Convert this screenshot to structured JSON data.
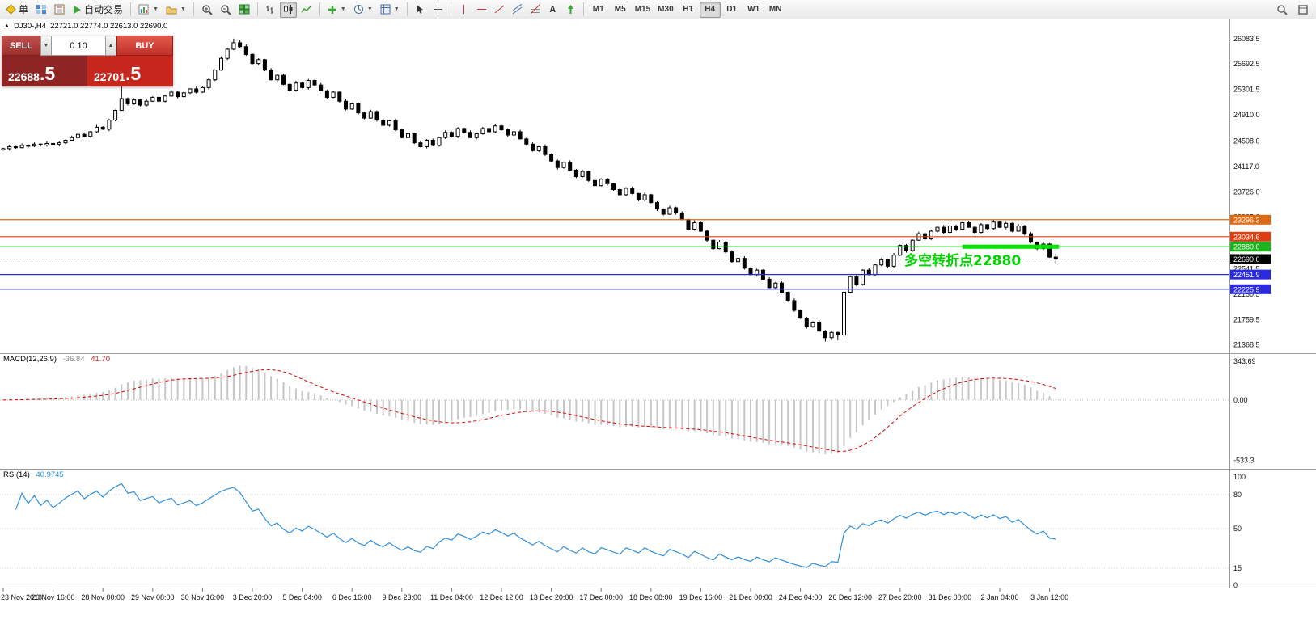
{
  "toolbar": {
    "new_order_label": "单",
    "autotrade_label": "自动交易",
    "icons": [
      "new-order",
      "market-watch",
      "data-window",
      "autotrading",
      "new-chart",
      "profiles",
      "zoom-in",
      "zoom-out",
      "tile-windows",
      "bar-chart",
      "candlestick-chart",
      "line-chart",
      "indicators",
      "periods",
      "templates",
      "cursor",
      "crosshair",
      "horizontal-line-tool",
      "trendline-tool",
      "channel-tool",
      "fibonacci-tool",
      "text-tool",
      "arrows-tool",
      "search",
      "fullscreen"
    ],
    "timeframes": [
      {
        "label": "M1",
        "active": false
      },
      {
        "label": "M5",
        "active": false
      },
      {
        "label": "M15",
        "active": false
      },
      {
        "label": "M30",
        "active": false
      },
      {
        "label": "H1",
        "active": false
      },
      {
        "label": "H4",
        "active": true
      },
      {
        "label": "D1",
        "active": false
      },
      {
        "label": "W1",
        "active": false
      },
      {
        "label": "MN",
        "active": false
      }
    ]
  },
  "window": {
    "symbol_period": "DJ30-,H4",
    "ohlc_line": "22721.0 22774.0 22613.0 22690.0"
  },
  "trade_panel": {
    "sell_label": "SELL",
    "buy_label": "BUY",
    "volume": "0.10",
    "sell_price": "22688.5",
    "sell_price_main": "22688",
    "sell_price_frac": ".5",
    "buy_price": "22701.5",
    "buy_price_main": "22701",
    "buy_price_frac": ".5",
    "spin_down": "▼",
    "spin_up": "▲"
  },
  "chart_data": {
    "type": "candlestick",
    "title": "DJ30-,H4",
    "y_range": [
      21290,
      26330
    ],
    "y_ticks": [
      "26083.5",
      "25692.5",
      "25301.5",
      "24910.0",
      "24508.0",
      "24117.0",
      "23726.0",
      "23335.0",
      "22932.5",
      "22541.5",
      "22150.5",
      "21759.5",
      "21368.5"
    ],
    "x_tick_step": 8,
    "x_tick_labels": [
      "23 Nov 2018",
      "26 Nov 16:00",
      "28 Nov 00:00",
      "29 Nov 08:00",
      "30 Nov 16:00",
      "3 Dec 20:00",
      "5 Dec 04:00",
      "6 Dec 16:00",
      "9 Dec 23:00",
      "11 Dec 04:00",
      "12 Dec 12:00",
      "13 Dec 20:00",
      "17 Dec 00:00",
      "18 Dec 08:00",
      "19 Dec 16:00",
      "21 Dec 00:00",
      "24 Dec 04:00",
      "26 Dec 12:00",
      "27 Dec 20:00",
      "31 Dec 00:00",
      "2 Jan 04:00",
      "3 Jan 12:00"
    ],
    "ohlc": [
      [
        24370,
        24405,
        24358,
        24390
      ],
      [
        24390,
        24442,
        24360,
        24420
      ],
      [
        24420,
        24432,
        24387,
        24405
      ],
      [
        24405,
        24470,
        24395,
        24440
      ],
      [
        24440,
        24458,
        24405,
        24430
      ],
      [
        24430,
        24485,
        24415,
        24460
      ],
      [
        24460,
        24470,
        24425,
        24445
      ],
      [
        24445,
        24505,
        24423,
        24470
      ],
      [
        24470,
        24485,
        24443,
        24455
      ],
      [
        24455,
        24502,
        24425,
        24480
      ],
      [
        24480,
        24532,
        24462,
        24520
      ],
      [
        24520,
        24590,
        24510,
        24560
      ],
      [
        24560,
        24628,
        24535,
        24610
      ],
      [
        24610,
        24635,
        24565,
        24580
      ],
      [
        24580,
        24660,
        24560,
        24650
      ],
      [
        24650,
        24755,
        24628,
        24720
      ],
      [
        24720,
        24735,
        24678,
        24690
      ],
      [
        24690,
        24852,
        24660,
        24830
      ],
      [
        24830,
        24992,
        24812,
        24980
      ],
      [
        24980,
        25350,
        24970,
        25160
      ],
      [
        25160,
        25178,
        25055,
        25080
      ],
      [
        25080,
        25165,
        25065,
        25140
      ],
      [
        25140,
        25150,
        25040,
        25060
      ],
      [
        25060,
        25155,
        25038,
        25120
      ],
      [
        25120,
        25195,
        25108,
        25180
      ],
      [
        25180,
        25202,
        25090,
        25120
      ],
      [
        25120,
        25212,
        25102,
        25200
      ],
      [
        25200,
        25290,
        25190,
        25260
      ],
      [
        25260,
        25278,
        25165,
        25190
      ],
      [
        25190,
        25275,
        25175,
        25250
      ],
      [
        25250,
        25320,
        25230,
        25310
      ],
      [
        25310,
        25345,
        25238,
        25260
      ],
      [
        25260,
        25345,
        25248,
        25330
      ],
      [
        25330,
        25472,
        25300,
        25450
      ],
      [
        25450,
        25612,
        25432,
        25600
      ],
      [
        25600,
        25810,
        25590,
        25780
      ],
      [
        25780,
        25938,
        25755,
        25920
      ],
      [
        25920,
        26083,
        25905,
        26020
      ],
      [
        26020,
        26060,
        25940,
        25960
      ],
      [
        25960,
        25995,
        25818,
        25840
      ],
      [
        25840,
        25855,
        25688,
        25700
      ],
      [
        25700,
        25782,
        25670,
        25760
      ],
      [
        25760,
        25772,
        25582,
        25600
      ],
      [
        25600,
        25630,
        25440,
        25450
      ],
      [
        25450,
        25538,
        25425,
        25520
      ],
      [
        25520,
        25545,
        25365,
        25380
      ],
      [
        25380,
        25390,
        25270,
        25290
      ],
      [
        25290,
        25435,
        25268,
        25400
      ],
      [
        25400,
        25415,
        25318,
        25330
      ],
      [
        25330,
        25462,
        25300,
        25440
      ],
      [
        25440,
        25452,
        25352,
        25370
      ],
      [
        25370,
        25400,
        25270,
        25280
      ],
      [
        25280,
        25298,
        25155,
        25180
      ],
      [
        25180,
        25285,
        25165,
        25260
      ],
      [
        25260,
        25270,
        25100,
        25120
      ],
      [
        25120,
        25155,
        24978,
        25000
      ],
      [
        25000,
        25095,
        24988,
        25080
      ],
      [
        25080,
        25102,
        24910,
        24940
      ],
      [
        24940,
        24952,
        24842,
        24860
      ],
      [
        24860,
        24990,
        24850,
        24960
      ],
      [
        24960,
        24978,
        24805,
        24830
      ],
      [
        24830,
        24855,
        24735,
        24750
      ],
      [
        24750,
        24830,
        24730,
        24820
      ],
      [
        24820,
        24855,
        24658,
        24680
      ],
      [
        24680,
        24695,
        24548,
        24560
      ],
      [
        24560,
        24642,
        24530,
        24620
      ],
      [
        24620,
        24632,
        24462,
        24480
      ],
      [
        24480,
        24510,
        24410,
        24420
      ],
      [
        24420,
        24538,
        24395,
        24520
      ],
      [
        24520,
        24545,
        24425,
        24440
      ],
      [
        24440,
        24570,
        24420,
        24560
      ],
      [
        24560,
        24675,
        24538,
        24640
      ],
      [
        24640,
        24655,
        24568,
        24580
      ],
      [
        24580,
        24722,
        24550,
        24700
      ],
      [
        24700,
        24712,
        24622,
        24640
      ],
      [
        24640,
        24670,
        24550,
        24560
      ],
      [
        24560,
        24638,
        24535,
        24620
      ],
      [
        24620,
        24725,
        24605,
        24700
      ],
      [
        24700,
        24710,
        24630,
        24650
      ],
      [
        24650,
        24775,
        24628,
        24740
      ],
      [
        24740,
        24755,
        24668,
        24680
      ],
      [
        24680,
        24702,
        24570,
        24600
      ],
      [
        24600,
        24662,
        24582,
        24650
      ],
      [
        24650,
        24680,
        24530,
        24540
      ],
      [
        24540,
        24558,
        24435,
        24460
      ],
      [
        24460,
        24485,
        24345,
        24360
      ],
      [
        24360,
        24430,
        24340,
        24420
      ],
      [
        24420,
        24455,
        24278,
        24300
      ],
      [
        24300,
        24315,
        24188,
        24200
      ],
      [
        24200,
        24222,
        24070,
        24100
      ],
      [
        24100,
        24192,
        24082,
        24180
      ],
      [
        24180,
        24210,
        24050,
        24060
      ],
      [
        24060,
        24078,
        23935,
        23960
      ],
      [
        23960,
        24065,
        23945,
        24040
      ],
      [
        24040,
        24050,
        23880,
        23900
      ],
      [
        23900,
        23935,
        23798,
        23820
      ],
      [
        23820,
        23935,
        23808,
        23920
      ],
      [
        23920,
        23942,
        23820,
        23850
      ],
      [
        23850,
        23862,
        23742,
        23760
      ],
      [
        23760,
        23790,
        23670,
        23680
      ],
      [
        23680,
        23798,
        23655,
        23780
      ],
      [
        23780,
        23805,
        23685,
        23700
      ],
      [
        23700,
        23710,
        23580,
        23600
      ],
      [
        23600,
        23715,
        23578,
        23680
      ],
      [
        23680,
        23695,
        23548,
        23560
      ],
      [
        23560,
        23582,
        23430,
        23460
      ],
      [
        23460,
        23472,
        23362,
        23380
      ],
      [
        23380,
        23510,
        23370,
        23480
      ],
      [
        23480,
        23498,
        23375,
        23400
      ],
      [
        23400,
        23425,
        23285,
        23300
      ],
      [
        23300,
        23310,
        23130,
        23150
      ],
      [
        23150,
        23285,
        23128,
        23250
      ],
      [
        23250,
        23265,
        23108,
        23120
      ],
      [
        23120,
        23142,
        22950,
        22980
      ],
      [
        22980,
        22992,
        22832,
        22850
      ],
      [
        22850,
        22980,
        22840,
        22950
      ],
      [
        22950,
        22968,
        22775,
        22800
      ],
      [
        22800,
        22825,
        22635,
        22650
      ],
      [
        22650,
        22710,
        22630,
        22700
      ],
      [
        22700,
        22735,
        22528,
        22550
      ],
      [
        22550,
        22565,
        22438,
        22450
      ],
      [
        22450,
        22542,
        22420,
        22520
      ],
      [
        22520,
        22532,
        22362,
        22380
      ],
      [
        22380,
        22410,
        22240,
        22250
      ],
      [
        22250,
        22338,
        22225,
        22320
      ],
      [
        22320,
        22345,
        22165,
        22180
      ],
      [
        22180,
        22190,
        22030,
        22050
      ],
      [
        22050,
        22085,
        21878,
        21900
      ],
      [
        21900,
        21915,
        21768,
        21780
      ],
      [
        21780,
        21802,
        21620,
        21650
      ],
      [
        21650,
        21732,
        21632,
        21720
      ],
      [
        21720,
        21750,
        21570,
        21580
      ],
      [
        21580,
        21598,
        21420,
        21480
      ],
      [
        21480,
        21585,
        21445,
        21560
      ],
      [
        21560,
        21570,
        21440,
        21520
      ],
      [
        21520,
        22230,
        21490,
        22180
      ],
      [
        22180,
        22435,
        22168,
        22420
      ],
      [
        22420,
        22442,
        22270,
        22300
      ],
      [
        22300,
        22532,
        22282,
        22520
      ],
      [
        22520,
        22550,
        22440,
        22450
      ],
      [
        22450,
        22618,
        22425,
        22600
      ],
      [
        22600,
        22705,
        22585,
        22680
      ],
      [
        22680,
        22690,
        22560,
        22580
      ],
      [
        22580,
        22785,
        22558,
        22750
      ],
      [
        22750,
        22915,
        22738,
        22900
      ],
      [
        22900,
        22922,
        22790,
        22820
      ],
      [
        22820,
        22992,
        22802,
        22980
      ],
      [
        22980,
        23110,
        22970,
        23080
      ],
      [
        23080,
        23098,
        22975,
        23000
      ],
      [
        23000,
        23145,
        22985,
        23120
      ],
      [
        23120,
        23190,
        23100,
        23180
      ],
      [
        23180,
        23215,
        23078,
        23100
      ],
      [
        23100,
        23215,
        23088,
        23200
      ],
      [
        23200,
        23222,
        23120,
        23150
      ],
      [
        23150,
        23262,
        23132,
        23250
      ],
      [
        23250,
        23280,
        23170,
        23180
      ],
      [
        23180,
        23198,
        23075,
        23100
      ],
      [
        23100,
        23245,
        23085,
        23220
      ],
      [
        23220,
        23230,
        23140,
        23160
      ],
      [
        23160,
        23295,
        23138,
        23260
      ],
      [
        23260,
        23275,
        23168,
        23180
      ],
      [
        23180,
        23262,
        23150,
        23240
      ],
      [
        23240,
        23252,
        23102,
        23120
      ],
      [
        23120,
        23230,
        23110,
        23200
      ],
      [
        23200,
        23218,
        23055,
        23080
      ],
      [
        23080,
        23105,
        22935,
        22950
      ],
      [
        22950,
        22960,
        22830,
        22850
      ],
      [
        22850,
        22955,
        22828,
        22920
      ],
      [
        22920,
        22935,
        22708,
        22720
      ],
      [
        22721,
        22774,
        22613,
        22690
      ]
    ],
    "overlays": {
      "hlines": [
        {
          "price": 23296.3,
          "label": "23296.3",
          "color": "#dd6a12"
        },
        {
          "price": 23034.6,
          "label": "23034.6",
          "color": "#dd3f12"
        },
        {
          "price": 22880.0,
          "label": "22880.0",
          "color": "#1db31d"
        },
        {
          "price": 22451.9,
          "label": "22451.9",
          "color": "#2a2ae0"
        },
        {
          "price": 22225.9,
          "label": "22225.9",
          "color": "#2a2ae0"
        }
      ],
      "current_price": {
        "price": 22690.0,
        "label": "22690.0",
        "badge_color": "#000000"
      },
      "support_segment": {
        "price": 22880.0,
        "from_index": 154,
        "to_index": 169.5,
        "color": "#00e400",
        "thickness": 5
      },
      "annotation": {
        "text": "多空转折点22880",
        "color": "#00d400"
      }
    },
    "indicators": {
      "macd": {
        "label": "MACD(12,26,9)",
        "fast": 12,
        "slow": 26,
        "signal": 9,
        "value_main": "-36.84",
        "value_signal": "41.70",
        "y_ticks": [
          "343.69",
          "0.00",
          "-533.3"
        ],
        "y_range": [
          -580,
          385
        ]
      },
      "rsi": {
        "label": "RSI(14)",
        "period": 14,
        "value": "40.9745",
        "levels": [
          80,
          50,
          15
        ],
        "y_ticks": [
          100,
          80,
          50,
          15,
          0
        ],
        "y_range": [
          0,
          100
        ]
      }
    }
  }
}
